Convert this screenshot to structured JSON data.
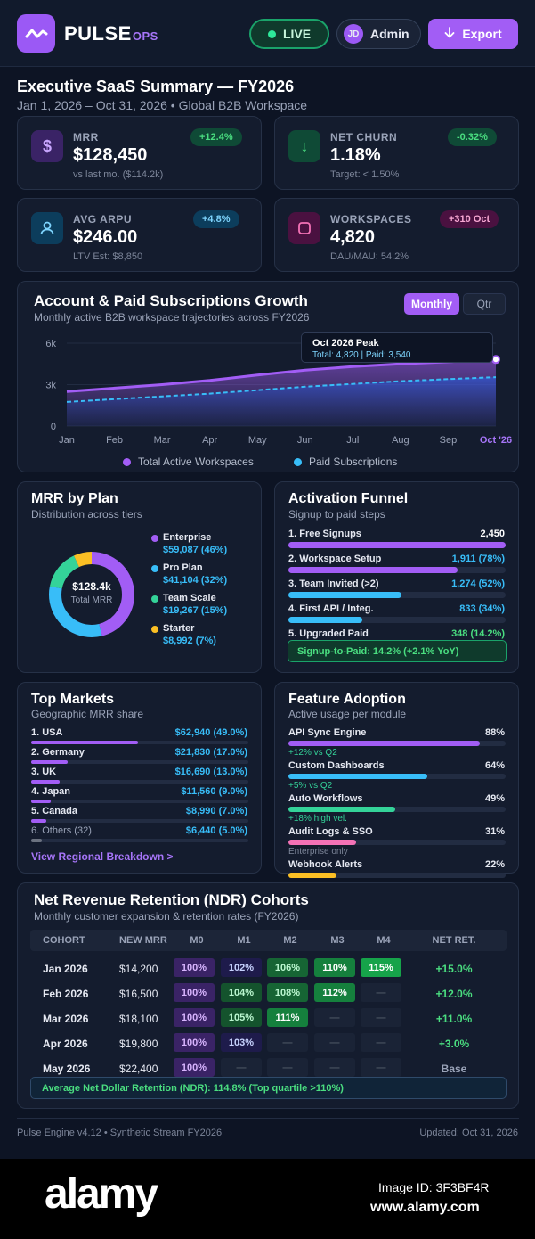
{
  "header": {
    "brand": "PULSE",
    "brand_suffix": "OPS",
    "live_label": "LIVE",
    "user_initials": "JD",
    "user_label": "Admin",
    "export_label": "Export"
  },
  "page": {
    "title": "Executive SaaS Summary — FY2026",
    "subtitle": "Jan 1, 2026 – Oct 31, 2026 • Global B2B Workspace"
  },
  "kpis": [
    {
      "label": "MRR",
      "value": "$128,450",
      "sub": "vs last mo. ($114.2k)",
      "badge": "+12.4%",
      "icon": "dollar-icon",
      "glyph": "$"
    },
    {
      "label": "NET CHURN",
      "value": "1.18%",
      "sub": "Target: < 1.50%",
      "badge": "-0.32%",
      "icon": "arrow-down-icon",
      "glyph": "↓"
    },
    {
      "label": "AVG ARPU",
      "value": "$246.00",
      "sub": "LTV Est: $8,850",
      "badge": "+4.8%",
      "icon": "user-icon",
      "glyph": "👤"
    },
    {
      "label": "WORKSPACES",
      "value": "4,820",
      "sub": "DAU/MAU: 54.2%",
      "badge": "+310 Oct",
      "icon": "square-icon",
      "glyph": "□"
    }
  ],
  "growth": {
    "title": "Account & Paid Subscriptions Growth",
    "subtitle": "Monthly active B2B workspace trajectories across FY2026",
    "toggle_monthly": "Monthly",
    "toggle_qtr": "Qtr",
    "tooltip_title": "Oct 2026 Peak",
    "tooltip_body": "Total: 4,820 | Paid: 3,540"
  },
  "chart_data": {
    "type": "area",
    "x": [
      "Jan",
      "Feb",
      "Mar",
      "Apr",
      "May",
      "Jun",
      "Jul",
      "Aug",
      "Sep",
      "Oct '26"
    ],
    "y_ticks": [
      "6k",
      "3k",
      "0"
    ],
    "ylim": [
      0,
      6000
    ],
    "series": [
      {
        "name": "Total Active Workspaces",
        "values": [
          2500,
          2750,
          3000,
          3300,
          3700,
          4050,
          4300,
          4500,
          4650,
          4820
        ],
        "color": "#a25df5"
      },
      {
        "name": "Paid Subscriptions",
        "values": [
          1750,
          1950,
          2150,
          2350,
          2600,
          2850,
          3050,
          3250,
          3400,
          3540
        ],
        "color": "#38bdf8"
      }
    ]
  },
  "mrr_plan": {
    "title": "MRR by Plan",
    "subtitle": "Distribution across tiers",
    "center_value": "$128.4k",
    "center_label": "Total MRR",
    "plans": [
      {
        "name": "Enterprise",
        "value": "$59,087 (46%)",
        "pct": 46,
        "color": "#a25df5"
      },
      {
        "name": "Pro Plan",
        "value": "$41,104 (32%)",
        "pct": 32,
        "color": "#38bdf8"
      },
      {
        "name": "Team Scale",
        "value": "$19,267 (15%)",
        "pct": 15,
        "color": "#34d399"
      },
      {
        "name": "Starter",
        "value": "$8,992 (7%)",
        "pct": 7,
        "color": "#fbbf24"
      }
    ]
  },
  "funnel": {
    "title": "Activation Funnel",
    "subtitle": "Signup to paid steps",
    "steps": [
      {
        "label": "1. Free Signups",
        "value": "2,450",
        "pct": 100,
        "color": "#a25df5"
      },
      {
        "label": "2. Workspace Setup",
        "value": "1,911 (78%)",
        "pct": 78,
        "color": "#a25df5"
      },
      {
        "label": "3. Team Invited (>2)",
        "value": "1,274 (52%)",
        "pct": 52,
        "color": "#38bdf8"
      },
      {
        "label": "4. First API / Integ.",
        "value": "833 (34%)",
        "pct": 34,
        "color": "#38bdf8"
      },
      {
        "label": "5. Upgraded Paid",
        "value": "348 (14.2%)",
        "pct": 14.2,
        "color": "#34d399"
      }
    ],
    "summary": "Signup-to-Paid: 14.2% (+2.1% YoY)"
  },
  "markets": {
    "title": "Top Markets",
    "subtitle": "Geographic MRR share",
    "rows": [
      {
        "label": "1. USA",
        "value": "$62,940 (49.0%)",
        "pct": 49
      },
      {
        "label": "2. Germany",
        "value": "$21,830 (17.0%)",
        "pct": 17
      },
      {
        "label": "3. UK",
        "value": "$16,690 (13.0%)",
        "pct": 13
      },
      {
        "label": "4. Japan",
        "value": "$11,560 (9.0%)",
        "pct": 9
      },
      {
        "label": "5. Canada",
        "value": "$8,990 (7.0%)",
        "pct": 7
      },
      {
        "label": "6. Others (32)",
        "value": "$6,440 (5.0%)",
        "pct": 5
      }
    ],
    "link": "View Regional Breakdown >"
  },
  "adoption": {
    "title": "Feature Adoption",
    "subtitle": "Active usage per module",
    "rows": [
      {
        "label": "API Sync Engine",
        "value": "88%",
        "pct": 88,
        "note": "+12% vs Q2",
        "color": "#a25df5",
        "note_color": "#34d399"
      },
      {
        "label": "Custom Dashboards",
        "value": "64%",
        "pct": 64,
        "note": "+5% vs Q2",
        "color": "#38bdf8",
        "note_color": "#34d399"
      },
      {
        "label": "Auto Workflows",
        "value": "49%",
        "pct": 49,
        "note": "+18% high vel.",
        "color": "#34d399",
        "note_color": "#34d399"
      },
      {
        "label": "Audit Logs & SSO",
        "value": "31%",
        "pct": 31,
        "note": "Enterprise only",
        "color": "#f472b6",
        "note_color": "#7c8599"
      },
      {
        "label": "Webhook Alerts",
        "value": "22%",
        "pct": 22,
        "note": "",
        "color": "#fbbf24",
        "note_color": "#7c8599"
      }
    ]
  },
  "ndr": {
    "title": "Net Revenue Retention (NDR) Cohorts",
    "subtitle": "Monthly customer expansion & retention rates (FY2026)",
    "headers": [
      "COHORT",
      "NEW MRR",
      "M0",
      "M1",
      "M2",
      "M3",
      "M4",
      "NET RET."
    ],
    "rows": [
      {
        "cohort": "Jan 2026",
        "mrr": "$14,200",
        "cells": [
          "100%",
          "102%",
          "106%",
          "110%",
          "115%"
        ],
        "net": "+15.0%"
      },
      {
        "cohort": "Feb 2026",
        "mrr": "$16,500",
        "cells": [
          "100%",
          "104%",
          "108%",
          "112%",
          "—"
        ],
        "net": "+12.0%"
      },
      {
        "cohort": "Mar 2026",
        "mrr": "$18,100",
        "cells": [
          "100%",
          "105%",
          "111%",
          "—",
          "—"
        ],
        "net": "+11.0%"
      },
      {
        "cohort": "Apr 2026",
        "mrr": "$19,800",
        "cells": [
          "100%",
          "103%",
          "—",
          "—",
          "—"
        ],
        "net": "+3.0%"
      },
      {
        "cohort": "May 2026",
        "mrr": "$22,400",
        "cells": [
          "100%",
          "—",
          "—",
          "—",
          "—"
        ],
        "net": "Base"
      }
    ],
    "summary": "Average Net Dollar Retention (NDR): 114.8% (Top quartile >110%)"
  },
  "footer": {
    "left": "Pulse Engine v4.12 • Synthetic Stream FY2026",
    "right": "Updated: Oct 31, 2026"
  },
  "watermark": {
    "brand": "alamy",
    "image_id": "Image ID: 3F3BF4R",
    "url": "www.alamy.com"
  }
}
